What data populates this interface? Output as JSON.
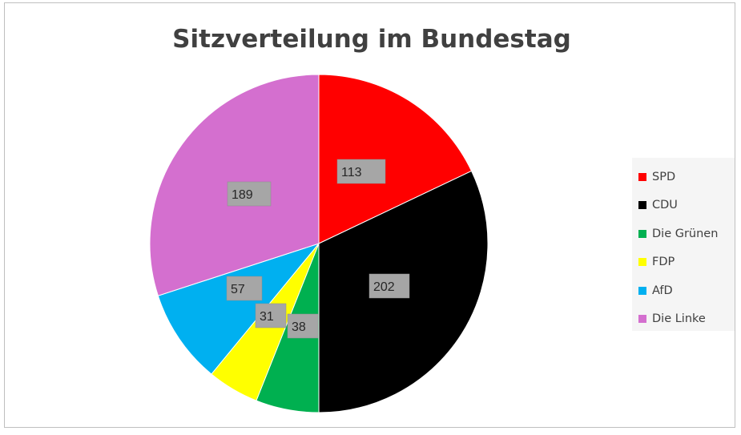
{
  "chart_data": {
    "type": "pie",
    "title": "Sitzverteilung im Bundestag",
    "categories": [
      "SPD",
      "CDU",
      "Die Grünen",
      "FDP",
      "AfD",
      "Die Linke"
    ],
    "values": [
      113,
      202,
      38,
      31,
      57,
      189
    ],
    "colors": [
      "#ff0000",
      "#000000",
      "#00b050",
      "#ffff00",
      "#00b0f0",
      "#d46fcf"
    ],
    "start_angle_deg": 0,
    "direction": "clockwise",
    "legend_position": "right",
    "data_labels": true
  }
}
